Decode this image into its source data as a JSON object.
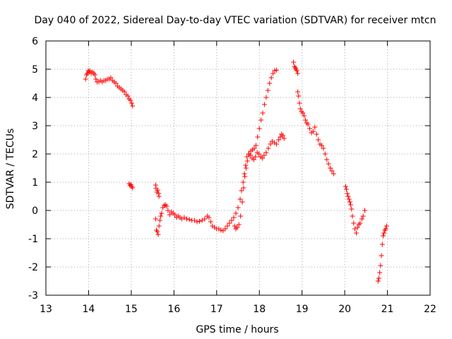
{
  "chart_data": {
    "type": "scatter",
    "title": "Day 040 of 2022, Sidereal Day-to-day VTEC variation (SDTVAR) for receiver mtcn",
    "xlabel": "GPS time / hours",
    "ylabel": "SDTVAR / TECUs",
    "xlim": [
      13,
      22
    ],
    "ylim": [
      -3,
      6
    ],
    "xticks": [
      "13",
      "14",
      "15",
      "16",
      "17",
      "18",
      "19",
      "20",
      "21",
      "22"
    ],
    "yticks": [
      "-3",
      "-2",
      "-1",
      "0",
      "1",
      "2",
      "3",
      "4",
      "5",
      "6"
    ],
    "grid": true,
    "marker": "+",
    "color": "#ff0000",
    "series": [
      {
        "points": [
          [
            13.93,
            4.65
          ],
          [
            13.95,
            4.8
          ],
          [
            13.97,
            4.85
          ],
          [
            13.99,
            4.95
          ],
          [
            14.01,
            4.9
          ],
          [
            14.03,
            4.95
          ],
          [
            14.06,
            4.85
          ],
          [
            14.09,
            4.9
          ],
          [
            14.12,
            4.85
          ],
          [
            14.15,
            4.8
          ],
          [
            14.17,
            4.65
          ],
          [
            14.2,
            4.55
          ],
          [
            14.24,
            4.55
          ],
          [
            14.28,
            4.6
          ],
          [
            14.32,
            4.55
          ],
          [
            14.36,
            4.6
          ],
          [
            14.4,
            4.6
          ],
          [
            14.44,
            4.65
          ],
          [
            14.48,
            4.65
          ],
          [
            14.52,
            4.7
          ],
          [
            14.56,
            4.6
          ],
          [
            14.6,
            4.55
          ],
          [
            14.64,
            4.5
          ],
          [
            14.68,
            4.4
          ],
          [
            14.72,
            4.35
          ],
          [
            14.76,
            4.3
          ],
          [
            14.8,
            4.25
          ],
          [
            14.84,
            4.2
          ],
          [
            14.88,
            4.1
          ],
          [
            14.92,
            4.05
          ],
          [
            14.95,
            3.95
          ],
          [
            14.98,
            3.9
          ],
          [
            15.01,
            3.8
          ],
          [
            15.03,
            3.7
          ],
          [
            14.95,
            0.95
          ],
          [
            14.97,
            0.88
          ],
          [
            14.99,
            0.92
          ],
          [
            15.01,
            0.85
          ],
          [
            15.03,
            0.8
          ],
          [
            15.57,
            0.9
          ],
          [
            15.58,
            0.78
          ],
          [
            15.6,
            0.65
          ],
          [
            15.62,
            0.72
          ],
          [
            15.64,
            0.6
          ],
          [
            15.65,
            0.5
          ],
          [
            15.57,
            -0.3
          ],
          [
            15.59,
            -0.7
          ],
          [
            15.61,
            -0.75
          ],
          [
            15.63,
            -0.85
          ],
          [
            15.65,
            -0.55
          ],
          [
            15.67,
            -0.35
          ],
          [
            15.69,
            -0.2
          ],
          [
            15.71,
            -0.1
          ],
          [
            15.74,
            0.1
          ],
          [
            15.77,
            0.18
          ],
          [
            15.8,
            0.2
          ],
          [
            15.83,
            0.15
          ],
          [
            15.86,
            0.0
          ],
          [
            15.9,
            -0.15
          ],
          [
            15.94,
            -0.05
          ],
          [
            15.98,
            -0.1
          ],
          [
            16.02,
            -0.15
          ],
          [
            16.06,
            -0.25
          ],
          [
            16.1,
            -0.2
          ],
          [
            16.14,
            -0.25
          ],
          [
            16.18,
            -0.3
          ],
          [
            16.24,
            -0.25
          ],
          [
            16.3,
            -0.3
          ],
          [
            16.36,
            -0.32
          ],
          [
            16.42,
            -0.35
          ],
          [
            16.48,
            -0.35
          ],
          [
            16.54,
            -0.4
          ],
          [
            16.6,
            -0.38
          ],
          [
            16.66,
            -0.35
          ],
          [
            16.72,
            -0.3
          ],
          [
            16.78,
            -0.2
          ],
          [
            16.82,
            -0.25
          ],
          [
            16.86,
            -0.4
          ],
          [
            16.9,
            -0.55
          ],
          [
            16.95,
            -0.6
          ],
          [
            17.0,
            -0.65
          ],
          [
            17.05,
            -0.65
          ],
          [
            17.1,
            -0.7
          ],
          [
            17.15,
            -0.72
          ],
          [
            17.2,
            -0.65
          ],
          [
            17.25,
            -0.55
          ],
          [
            17.3,
            -0.45
          ],
          [
            17.35,
            -0.35
          ],
          [
            17.4,
            -0.25
          ],
          [
            17.45,
            -0.1
          ],
          [
            17.5,
            0.1
          ],
          [
            17.55,
            0.4
          ],
          [
            17.58,
            0.7
          ],
          [
            17.62,
            1.0
          ],
          [
            17.65,
            1.3
          ],
          [
            17.68,
            1.6
          ],
          [
            17.71,
            1.9
          ],
          [
            17.75,
            2.0
          ],
          [
            17.79,
            1.95
          ],
          [
            17.83,
            1.85
          ],
          [
            17.87,
            1.8
          ],
          [
            17.91,
            1.9
          ],
          [
            17.95,
            2.05
          ],
          [
            17.99,
            2.0
          ],
          [
            18.03,
            1.9
          ],
          [
            18.07,
            1.85
          ],
          [
            18.11,
            1.95
          ],
          [
            18.16,
            2.05
          ],
          [
            18.21,
            2.2
          ],
          [
            18.26,
            2.35
          ],
          [
            18.3,
            2.45
          ],
          [
            18.35,
            2.4
          ],
          [
            18.4,
            2.35
          ],
          [
            18.45,
            2.5
          ],
          [
            18.49,
            2.6
          ],
          [
            18.52,
            2.7
          ],
          [
            18.55,
            2.65
          ],
          [
            18.58,
            2.55
          ],
          [
            17.42,
            -0.55
          ],
          [
            17.45,
            -0.65
          ],
          [
            17.48,
            -0.6
          ],
          [
            17.52,
            -0.5
          ],
          [
            17.56,
            -0.2
          ],
          [
            17.6,
            0.3
          ],
          [
            17.63,
            0.8
          ],
          [
            17.66,
            1.2
          ],
          [
            17.69,
            1.5
          ],
          [
            17.72,
            1.75
          ],
          [
            17.76,
            2.0
          ],
          [
            17.8,
            2.1
          ],
          [
            17.84,
            2.15
          ],
          [
            17.88,
            2.2
          ],
          [
            17.92,
            2.3
          ],
          [
            17.96,
            2.6
          ],
          [
            18.0,
            2.9
          ],
          [
            18.04,
            3.2
          ],
          [
            18.08,
            3.45
          ],
          [
            18.12,
            3.75
          ],
          [
            18.16,
            4.0
          ],
          [
            18.2,
            4.25
          ],
          [
            18.24,
            4.5
          ],
          [
            18.28,
            4.7
          ],
          [
            18.32,
            4.85
          ],
          [
            18.36,
            4.95
          ],
          [
            18.4,
            4.97
          ],
          [
            18.8,
            5.25
          ],
          [
            18.82,
            5.1
          ],
          [
            18.84,
            5.05
          ],
          [
            18.86,
            5.0
          ],
          [
            18.88,
            4.95
          ],
          [
            18.9,
            4.85
          ],
          [
            18.9,
            4.2
          ],
          [
            18.92,
            4.05
          ],
          [
            18.94,
            3.8
          ],
          [
            18.96,
            3.6
          ],
          [
            18.99,
            3.5
          ],
          [
            19.02,
            3.45
          ],
          [
            19.05,
            3.35
          ],
          [
            19.08,
            3.2
          ],
          [
            19.11,
            3.1
          ],
          [
            19.14,
            3.05
          ],
          [
            19.18,
            2.9
          ],
          [
            19.22,
            2.75
          ],
          [
            19.26,
            2.8
          ],
          [
            19.3,
            2.95
          ],
          [
            19.34,
            2.7
          ],
          [
            19.38,
            2.5
          ],
          [
            19.42,
            2.35
          ],
          [
            19.46,
            2.3
          ],
          [
            19.5,
            2.2
          ],
          [
            19.54,
            2.0
          ],
          [
            19.58,
            1.8
          ],
          [
            19.62,
            1.65
          ],
          [
            19.66,
            1.5
          ],
          [
            19.7,
            1.4
          ],
          [
            19.74,
            1.3
          ],
          [
            20.02,
            0.85
          ],
          [
            20.04,
            0.75
          ],
          [
            20.06,
            0.6
          ],
          [
            20.08,
            0.5
          ],
          [
            20.1,
            0.4
          ],
          [
            20.12,
            0.3
          ],
          [
            20.14,
            0.2
          ],
          [
            20.16,
            0.05
          ],
          [
            20.18,
            -0.2
          ],
          [
            20.21,
            -0.45
          ],
          [
            20.24,
            -0.65
          ],
          [
            20.27,
            -0.8
          ],
          [
            20.3,
            -0.6
          ],
          [
            20.33,
            -0.5
          ],
          [
            20.36,
            -0.45
          ],
          [
            20.4,
            -0.3
          ],
          [
            20.43,
            -0.2
          ],
          [
            20.47,
            0.0
          ],
          [
            20.78,
            -2.5
          ],
          [
            20.8,
            -2.4
          ],
          [
            20.82,
            -2.2
          ],
          [
            20.84,
            -1.95
          ],
          [
            20.86,
            -1.6
          ],
          [
            20.88,
            -1.2
          ],
          [
            20.9,
            -0.9
          ],
          [
            20.92,
            -0.8
          ],
          [
            20.94,
            -0.7
          ],
          [
            20.96,
            -0.65
          ],
          [
            20.98,
            -0.55
          ]
        ]
      }
    ]
  }
}
